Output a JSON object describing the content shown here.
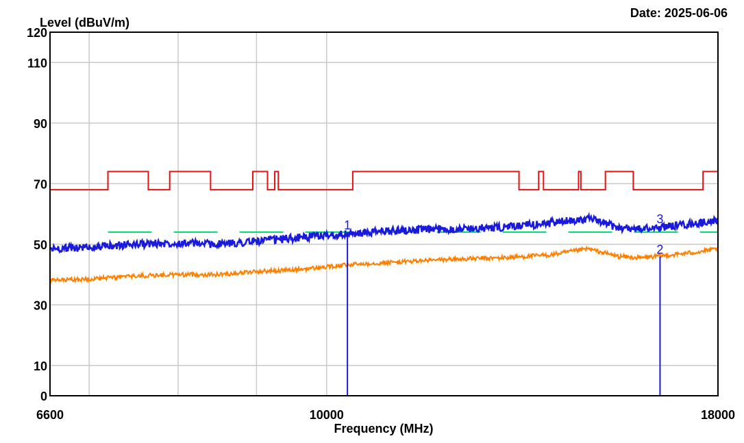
{
  "header": {
    "ylabel": "Level (dBuV/m)",
    "date": "Date: 2025-06-06",
    "xlabel": "Frequency (MHz)"
  },
  "chart_data": {
    "type": "line",
    "title": "",
    "xlabel": "Frequency (MHz)",
    "ylabel": "Level (dBuV/m)",
    "xlim": [
      6600,
      18000
    ],
    "ylim": [
      0,
      120
    ],
    "x_scale": "log",
    "grid": true,
    "x_tick_labels": [
      "6600",
      "10000",
      "18000"
    ],
    "x_grid_values": [
      6600,
      7000,
      8000,
      9000,
      10000,
      18000
    ],
    "y_ticks": [
      0,
      10,
      30,
      50,
      70,
      90,
      110,
      120
    ],
    "series": [
      {
        "color": "#e81010",
        "style": "step",
        "x": [
          6600,
          7200,
          7200,
          7650,
          7650,
          7900,
          7900,
          8400,
          8400,
          8950,
          8950,
          9150,
          9150,
          9250,
          9250,
          9300,
          9300,
          9500,
          9500,
          10400,
          10400,
          13350,
          13350,
          13750,
          13750,
          13850,
          13850,
          14599,
          14599,
          14650,
          14650,
          15200,
          15200,
          15850,
          15850,
          17600,
          17600,
          18000
        ],
        "y": [
          68,
          68,
          74,
          74,
          68,
          68,
          74,
          74,
          68,
          68,
          74,
          74,
          68,
          68,
          74,
          74,
          68,
          68,
          68,
          68,
          74,
          74,
          68,
          68,
          74,
          74,
          68,
          68,
          74,
          74,
          68,
          68,
          74,
          74,
          68,
          68,
          74,
          74
        ]
      },
      {
        "color": "#00e070",
        "style": "dashed",
        "x": [
          7200,
          7650,
          7900,
          8400,
          8950,
          9500,
          13350,
          13750,
          15200,
          15850,
          17600,
          18000
        ],
        "y": [
          54,
          54,
          54,
          54,
          54,
          54,
          54,
          54,
          54,
          54,
          54,
          54
        ]
      },
      {
        "color": "#1a1adc",
        "style": "noisy",
        "x": [
          6600,
          7000,
          7500,
          8000,
          8500,
          9000,
          9500,
          10000,
          10500,
          11000,
          12000,
          13000,
          14000,
          14800,
          15500,
          16000,
          16800,
          17500,
          18000
        ],
        "y": [
          48.5,
          49,
          50,
          50.5,
          50,
          51,
          52,
          53,
          53.5,
          54.5,
          55,
          55.5,
          57,
          58.5,
          55.5,
          55,
          56,
          57,
          58
        ]
      },
      {
        "color": "#ff8000",
        "style": "noisy",
        "x": [
          6600,
          7000,
          7500,
          8000,
          8500,
          9000,
          9500,
          10000,
          10500,
          11000,
          12000,
          13000,
          14000,
          14800,
          15500,
          16000,
          16800,
          17500,
          18000
        ],
        "y": [
          38,
          38.5,
          39.5,
          40,
          40,
          41,
          41.5,
          42.5,
          43.5,
          44,
          45,
          45.5,
          46.5,
          48.5,
          46,
          45.5,
          46.5,
          47.5,
          48.5
        ]
      }
    ],
    "markers": [
      {
        "label": "1",
        "x": 10317,
        "y": 54
      },
      {
        "label": "2",
        "x": 16500,
        "y": 46
      },
      {
        "label": "3",
        "x": 16500,
        "y": 56
      }
    ]
  }
}
